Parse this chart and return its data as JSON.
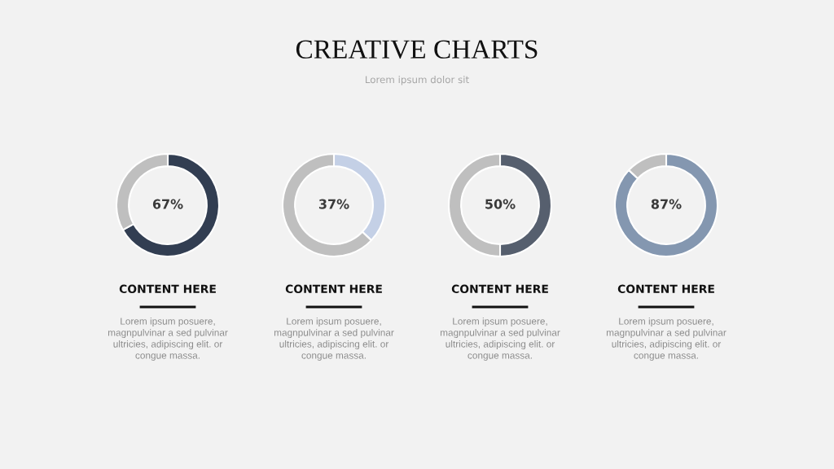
{
  "chart_data": [
    {
      "type": "other",
      "title": "CREATIVE CHARTS",
      "subtitle": "Lorem ipsum dolor sit"
    },
    {
      "type": "donut",
      "categories": [
        null,
        null
      ],
      "values": [
        67,
        33
      ],
      "colors": [
        "#323e52",
        "#bfbfbf"
      ],
      "value_labels": [
        "67%",
        null
      ],
      "annotations": [
        "CONTENT HERE",
        "Lorem ipsum posuere,\nmagnpulvinar a sed pulvinar\nultricies, adipiscing elit. or\ncongue massa."
      ]
    },
    {
      "type": "donut",
      "categories": [
        null,
        null
      ],
      "values": [
        37,
        63
      ],
      "colors": [
        "#c4d0e6",
        "#bfbfbf"
      ],
      "value_labels": [
        "37%",
        null
      ],
      "annotations": [
        "CONTENT HERE",
        "Lorem ipsum posuere,\nmagnpulvinar a sed pulvinar\nultricies, adipiscing elit. or\ncongue massa."
      ]
    },
    {
      "type": "donut",
      "categories": [
        null,
        null
      ],
      "values": [
        50,
        50
      ],
      "colors": [
        "#565f6e",
        "#bfbfbf"
      ],
      "value_labels": [
        "50%",
        null
      ],
      "annotations": [
        "CONTENT HERE",
        "Lorem ipsum posuere,\nmagnpulvinar a sed pulvinar\nultricies, adipiscing elit. or\ncongue massa."
      ]
    },
    {
      "type": "donut",
      "categories": [
        null,
        null
      ],
      "values": [
        87,
        13
      ],
      "colors": [
        "#8497b0",
        "#bfbfbf"
      ],
      "value_labels": [
        "87%",
        null
      ],
      "annotations": [
        "CONTENT HERE",
        "Lorem ipsum posuere,\nmagnpulvinar a sed pulvinar\nultricies, adipiscing elit. or\ncongue massa."
      ]
    }
  ]
}
